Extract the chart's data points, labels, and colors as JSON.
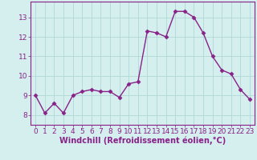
{
  "x": [
    0,
    1,
    2,
    3,
    4,
    5,
    6,
    7,
    8,
    9,
    10,
    11,
    12,
    13,
    14,
    15,
    16,
    17,
    18,
    19,
    20,
    21,
    22,
    23
  ],
  "y": [
    9.0,
    8.1,
    8.6,
    8.1,
    9.0,
    9.2,
    9.3,
    9.2,
    9.2,
    8.9,
    9.6,
    9.7,
    12.3,
    12.2,
    12.0,
    13.3,
    13.3,
    13.0,
    12.2,
    11.0,
    10.3,
    10.1,
    9.3,
    8.8
  ],
  "line_color": "#882288",
  "marker": "D",
  "marker_size": 2.5,
  "linewidth": 1.0,
  "xlabel": "Windchill (Refroidissement éolien,°C)",
  "xlabel_fontsize": 7,
  "ytick_values": [
    8,
    9,
    10,
    11,
    12,
    13
  ],
  "ytick_labels": [
    "8",
    "9",
    "10",
    "11",
    "12",
    "13"
  ],
  "ylim": [
    7.5,
    13.8
  ],
  "xlim": [
    -0.5,
    23.5
  ],
  "background_color": "#d5eeee",
  "grid_color": "#b0d8d8",
  "tick_fontsize": 6.5
}
